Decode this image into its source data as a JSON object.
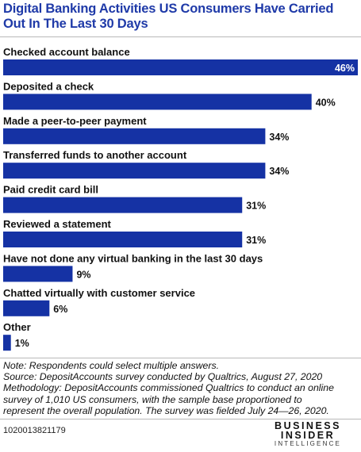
{
  "title": "Digital Banking Activities US Consumers Have Carried Out In The Last 30 Days",
  "chart_data": {
    "type": "bar",
    "orientation": "horizontal",
    "title": "Digital Banking Activities US Consumers Have Carried Out In The Last 30 Days",
    "categories": [
      "Checked account balance",
      "Deposited a check",
      "Made a peer-to-peer payment",
      "Transferred funds to another account",
      "Paid credit card bill",
      "Reviewed a statement",
      "Have not done any virtual banking in the last 30 days",
      "Chatted virtually with customer service",
      "Other"
    ],
    "values": [
      46,
      40,
      34,
      34,
      31,
      31,
      9,
      6,
      1
    ],
    "value_labels": [
      "46%",
      "40%",
      "34%",
      "34%",
      "31%",
      "31%",
      "9%",
      "6%",
      "1%"
    ],
    "unit": "%",
    "bar_color": "#1532a4",
    "xlim": [
      0,
      46
    ],
    "grid": false,
    "legend": "none"
  },
  "notes": [
    "Note: Respondents could select multiple answers.",
    "Source: DepositAccounts survey conducted by Qualtrics, August 27, 2020",
    "Methodology: DepositAccounts commissioned Qualtrics to conduct an online",
    "survey of 1,010 US consumers, with the sample base proportioned to",
    "represent the overall population. The survey was fielded July 24—26, 2020."
  ],
  "chart_id": "1020013821179",
  "logo": {
    "line1": "BUSINESS",
    "line2": "INSIDER",
    "line3": "INTELLIGENCE"
  },
  "colors": {
    "title": "#1f3aa8",
    "bar": "#1532a4"
  }
}
